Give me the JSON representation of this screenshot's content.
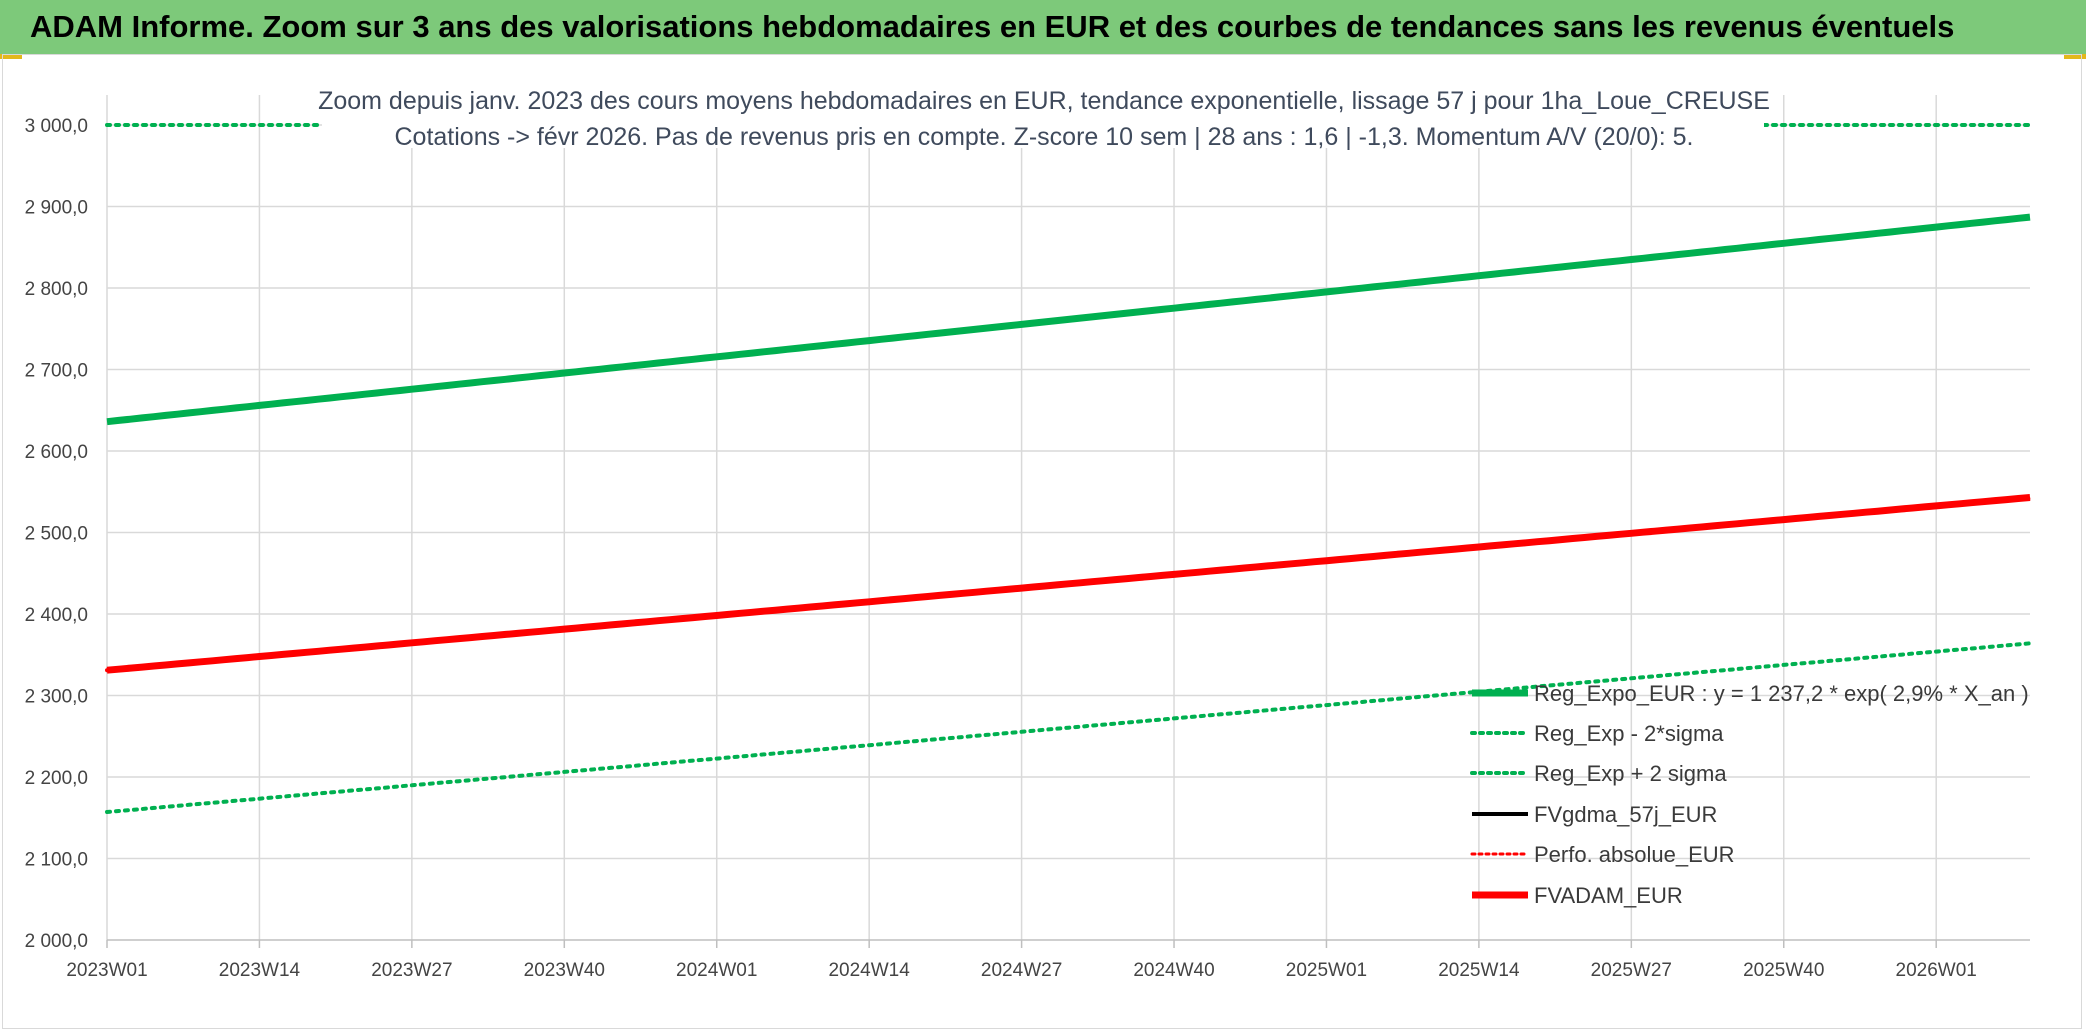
{
  "header": {
    "title": "ADAM Informe. Zoom sur 3 ans des valorisations hebdomadaires en EUR et des courbes de tendances sans les revenus éventuels"
  },
  "colors": {
    "banner": "#7dc97a",
    "trend": "#00b050",
    "fvadam": "#ff0000",
    "gdma": "#000000",
    "grid": "#d9d9d9"
  },
  "chart_data": {
    "type": "line",
    "title_lines": [
      "Zoom depuis janv. 2023 des cours moyens hebdomadaires en EUR, tendance exponentielle, lissage 57 j pour 1ha_Loue_CREUSE",
      "Cotations -> févr 2026. Pas de revenus pris en compte. Z-score 10 sem | 28 ans : 1,6 | -1,3. Momentum A/V (20/0): 5."
    ],
    "ylim": [
      2000,
      3000
    ],
    "yticks": [
      2000,
      2100,
      2200,
      2300,
      2400,
      2500,
      2600,
      2700,
      2800,
      2900,
      3000
    ],
    "ytick_labels": [
      "2 000,0",
      "2 100,0",
      "2 200,0",
      "2 300,0",
      "2 400,0",
      "2 500,0",
      "2 600,0",
      "2 700,0",
      "2 800,0",
      "2 900,0",
      "3 000,0"
    ],
    "x_points": 165,
    "xticks": [
      {
        "index": 0,
        "label": "2023W01"
      },
      {
        "index": 13,
        "label": "2023W14"
      },
      {
        "index": 26,
        "label": "2023W27"
      },
      {
        "index": 39,
        "label": "2023W40"
      },
      {
        "index": 52,
        "label": "2024W01"
      },
      {
        "index": 65,
        "label": "2024W14"
      },
      {
        "index": 78,
        "label": "2024W27"
      },
      {
        "index": 91,
        "label": "2024W40"
      },
      {
        "index": 104,
        "label": "2025W01"
      },
      {
        "index": 117,
        "label": "2025W14"
      },
      {
        "index": 130,
        "label": "2025W27"
      },
      {
        "index": 143,
        "label": "2025W40"
      },
      {
        "index": 156,
        "label": "2026W01"
      }
    ],
    "series": [
      {
        "name": "Reg_Expo_EUR : y = 1 237,2 * exp( 2,9% *  X_an )",
        "style": "solid-thick",
        "color": "#00b050",
        "start": 2636,
        "end": 2887
      },
      {
        "name": "Reg_Exp - 2*sigma",
        "style": "dotted",
        "color": "#00b050",
        "start": 2157,
        "end": 2364
      },
      {
        "name": "Reg_Exp + 2 sigma",
        "style": "dotted",
        "color": "#00b050",
        "start": 3000,
        "end": 3000,
        "note": "partially off-visible near top"
      },
      {
        "name": "FVgdma_57j_EUR",
        "style": "solid",
        "color": "#000000",
        "start": 2331,
        "end": 2542
      },
      {
        "name": "Perfo. absolue_EUR",
        "style": "dotted",
        "color": "#ff0000",
        "start": 2331,
        "end": 2542
      },
      {
        "name": "FVADAM_EUR",
        "style": "solid-thick",
        "color": "#ff0000",
        "start": 2331,
        "end": 2543
      }
    ],
    "legend_position": "bottom-right",
    "grid": true
  }
}
